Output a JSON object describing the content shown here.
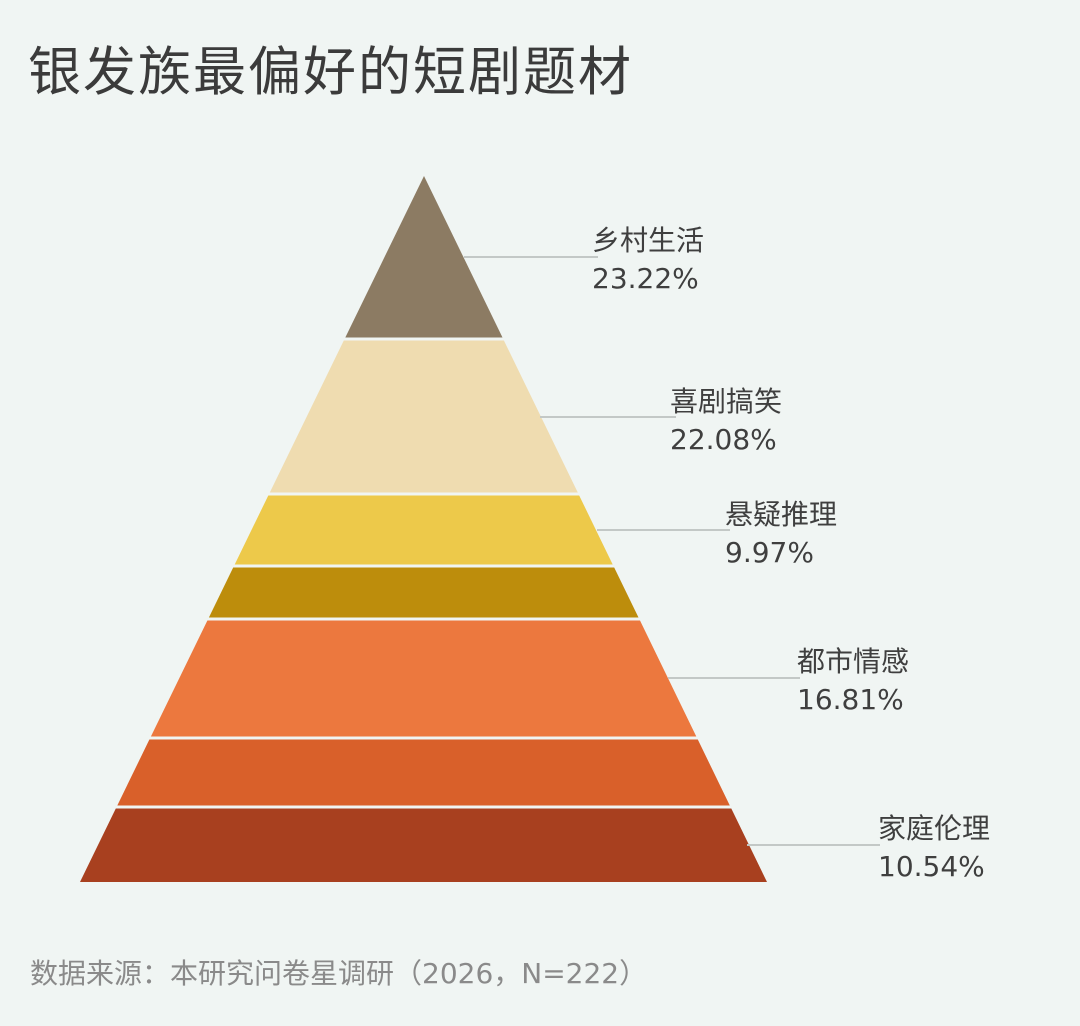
{
  "title": "银发族最偏好的短剧题材",
  "source": "数据来源：本研究问卷星调研（2026，N=222）",
  "chart_data": {
    "type": "pyramid",
    "title": "银发族最偏好的短剧题材",
    "unit": "%",
    "bands": [
      {
        "color": "#8c7b63",
        "labeled": true
      },
      {
        "color": "#efdcb0",
        "labeled": true
      },
      {
        "color": "#edc94a",
        "labeled": true
      },
      {
        "color": "#bd8d0c",
        "labeled": false
      },
      {
        "color": "#ec783e",
        "labeled": true
      },
      {
        "color": "#d9602a",
        "labeled": false
      },
      {
        "color": "#a8401f",
        "labeled": true
      }
    ],
    "categories": [
      "乡村生活",
      "喜剧搞笑",
      "悬疑推理",
      "都市情感",
      "家庭伦理"
    ],
    "value_labels": [
      "23.22%",
      "22.08%",
      "9.97%",
      "16.81%",
      "10.54%"
    ],
    "values": [
      23.22,
      22.08,
      9.97,
      16.81,
      10.54
    ],
    "label_color": "#3f3f3f",
    "leader_color": "#c3c8c6"
  }
}
